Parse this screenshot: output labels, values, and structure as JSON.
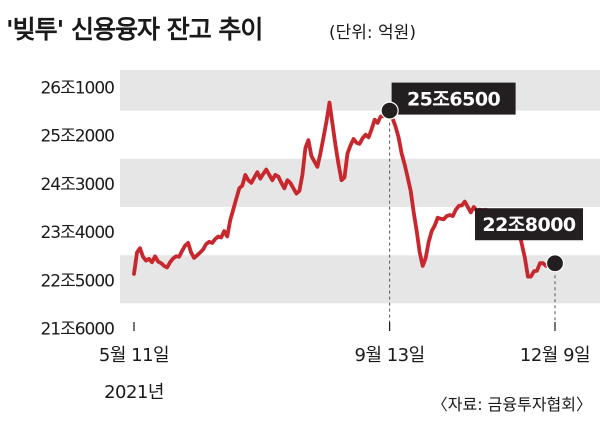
{
  "title": {
    "main": "'빚투' 신용융자 잔고 추이",
    "unit": "(단위: 억원)"
  },
  "source": "〈자료: 금융투자협회〉",
  "colors": {
    "line": "#c8272d",
    "band": "#e6e6e6",
    "callout_bg": "#231f20",
    "marker": "#231f20"
  },
  "chart_data": {
    "type": "line",
    "title": "'빚투' 신용융자 잔고 추이",
    "unit": "억원",
    "xlabel": "",
    "ylabel": "",
    "ylim": [
      216000,
      261000
    ],
    "yticks": [
      216000,
      225000,
      234000,
      243000,
      252000,
      261000
    ],
    "ytick_labels": [
      "21조6000",
      "22조5000",
      "23조4000",
      "24조3000",
      "25조2000",
      "26조1000"
    ],
    "banded_background": true,
    "x_tick_labels": [
      {
        "index": 0,
        "label": "5월 11일",
        "sublabel": "2021년"
      },
      {
        "index": 85,
        "label": "9월 13일"
      },
      {
        "index": 140,
        "label": "12월 9일"
      }
    ],
    "series": [
      {
        "values": [
          226000,
          230000,
          230800,
          229200,
          228500,
          228800,
          228200,
          229300,
          228300,
          228000,
          227500,
          227200,
          228200,
          228900,
          229300,
          229200,
          230300,
          231300,
          231800,
          230000,
          229000,
          229500,
          230000,
          230600,
          231600,
          232000,
          231800,
          232500,
          233000,
          232800,
          234000,
          233000,
          236000,
          238000,
          240000,
          242000,
          242500,
          244500,
          243500,
          243000,
          244000,
          245000,
          243800,
          244700,
          245500,
          244500,
          243500,
          244500,
          244200,
          243000,
          242000,
          243500,
          243000,
          242000,
          241000,
          241500,
          244500,
          249500,
          251000,
          248000,
          247000,
          246000,
          248500,
          251500,
          254500,
          258000,
          254000,
          250000,
          246500,
          243500,
          244000,
          248500,
          250000,
          251200,
          250500,
          250300,
          251300,
          252000,
          251500,
          253000,
          254800,
          254200,
          255400,
          255500,
          256500,
          256500,
          255000,
          253500,
          251500,
          248500,
          246500,
          244000,
          241500,
          237500,
          234000,
          230000,
          227500,
          229000,
          232000,
          234000,
          235000,
          236500,
          236300,
          236200,
          236800,
          237000,
          236800,
          238000,
          238700,
          238800,
          239500,
          238500,
          237500,
          238500,
          237800,
          238000,
          237900,
          238000,
          237600,
          236500,
          235500,
          234500,
          236300,
          237800,
          236000,
          235000,
          235800,
          237500,
          234000,
          231500,
          229000,
          225500,
          225500,
          226500,
          226600,
          228000,
          228000,
          227500,
          227800,
          228000
        ]
      }
    ],
    "annotations": [
      {
        "index": 85,
        "value": 256500,
        "label": "25조6500"
      },
      {
        "index": 140,
        "value": 228000,
        "label": "22조8000"
      }
    ]
  }
}
